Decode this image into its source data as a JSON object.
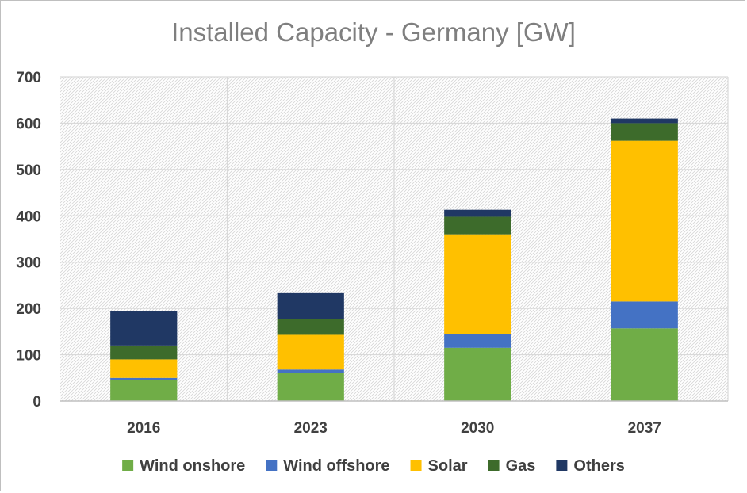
{
  "chart_data": {
    "type": "bar",
    "stacked": true,
    "title": "Installed Capacity - Germany [GW]",
    "categories": [
      "2016",
      "2023",
      "2030",
      "2037"
    ],
    "series": [
      {
        "name": "Wind onshore",
        "color": "#70ad47",
        "values": [
          45,
          60,
          115,
          157
        ]
      },
      {
        "name": "Wind offshore",
        "color": "#4472c4",
        "values": [
          5,
          8,
          30,
          58
        ]
      },
      {
        "name": "Solar",
        "color": "#ffc000",
        "values": [
          40,
          75,
          215,
          347
        ]
      },
      {
        "name": "Gas",
        "color": "#3d6b2b",
        "values": [
          30,
          35,
          38,
          38
        ]
      },
      {
        "name": "Others",
        "color": "#203864",
        "values": [
          75,
          55,
          15,
          10
        ]
      }
    ],
    "ylim": [
      0,
      700
    ],
    "yticks": [
      0,
      100,
      200,
      300,
      400,
      500,
      600,
      700
    ],
    "grid": true,
    "legend": "bottom"
  }
}
